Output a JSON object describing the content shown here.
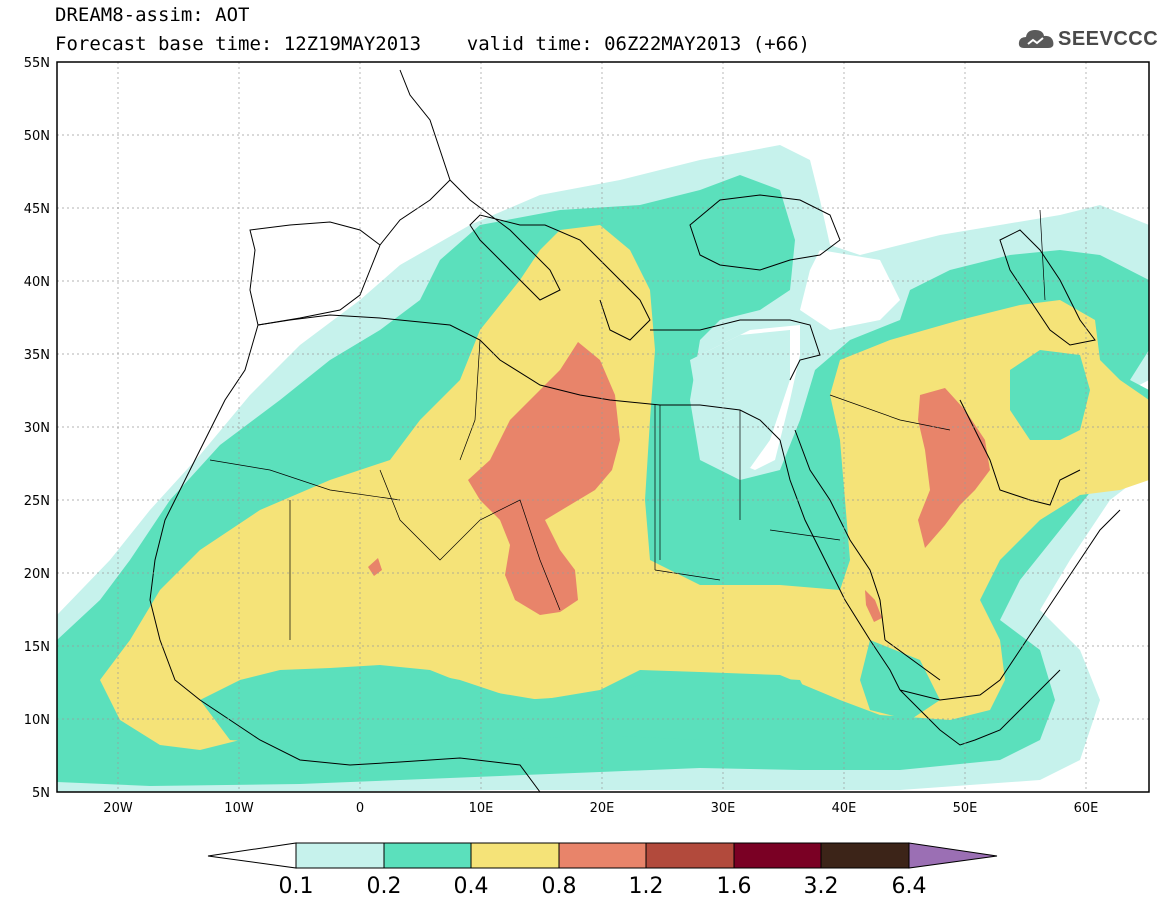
{
  "title": {
    "line1": "DREAM8-assim: AOT",
    "line2": "Forecast base time: 12Z19MAY2013    valid time: 06Z22MAY2013 (+66)"
  },
  "logo": {
    "text": "SEEVCCC",
    "icon": "cloud-logo-icon"
  },
  "axes": {
    "lat_labels": [
      "55N",
      "50N",
      "45N",
      "40N",
      "35N",
      "30N",
      "25N",
      "20N",
      "15N",
      "10N",
      "5N"
    ],
    "lon_labels": [
      "20W",
      "10W",
      "0",
      "10E",
      "20E",
      "30E",
      "40E",
      "50E",
      "60E"
    ],
    "lon_range": [
      -25,
      65
    ],
    "lat_range": [
      5,
      55
    ]
  },
  "colorbar": {
    "levels": [
      "0.1",
      "0.2",
      "0.4",
      "0.8",
      "1.2",
      "1.6",
      "3.2",
      "6.4"
    ],
    "colors": [
      "#c6f2ec",
      "#5be0bc",
      "#f5e378",
      "#e8846a",
      "#b24a3c",
      "#7a0024",
      "#3c2418",
      "#9b6fb4"
    ],
    "under_color": "#ffffff"
  },
  "map_colors": {
    "c01": "#c6f2ec",
    "c02": "#5be0bc",
    "c04": "#f5e378",
    "c08": "#e8846a",
    "c12": "#b24a3c"
  }
}
